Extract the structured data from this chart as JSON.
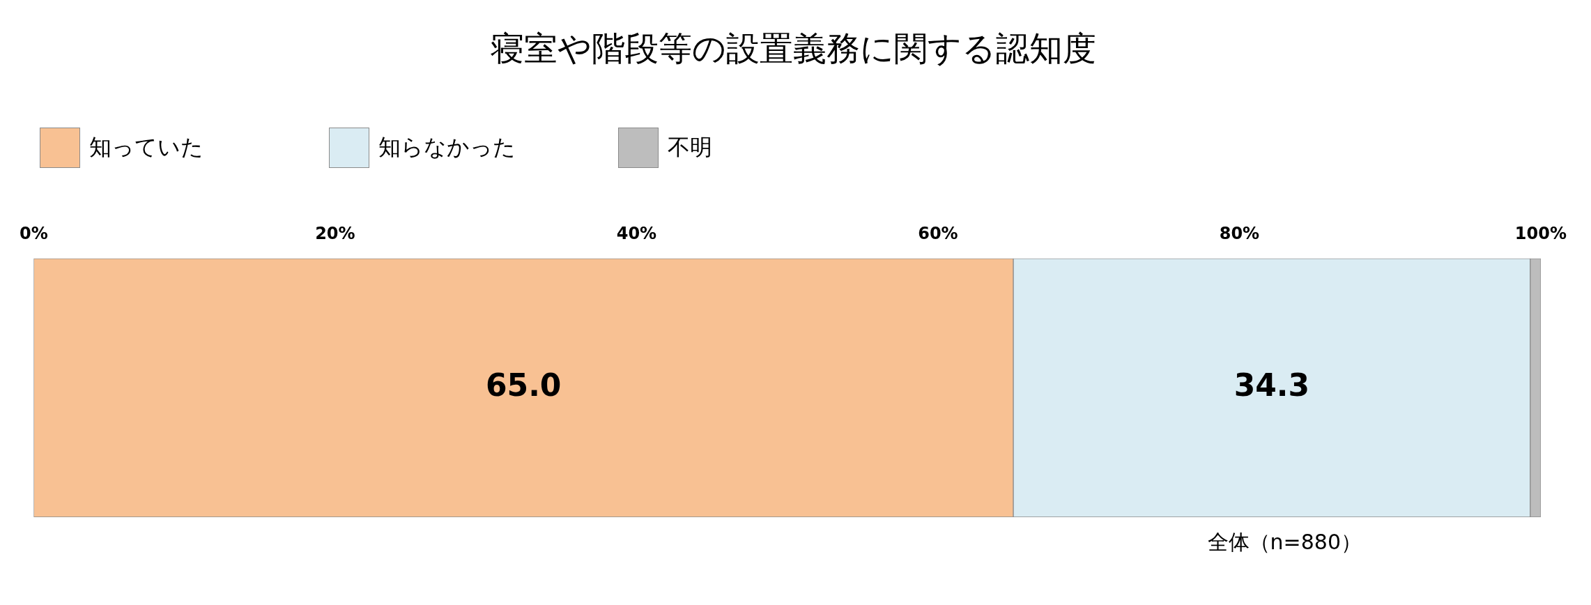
{
  "chart_data": {
    "type": "bar",
    "title": "寝室や階段等の設置義務に関する認知度",
    "orientation": "horizontal",
    "stacked": true,
    "categories": [
      null
    ],
    "series": [
      {
        "name": "知っていた",
        "color": "#f8c193",
        "values": [
          65.0
        ],
        "value_labels": [
          "65.0"
        ]
      },
      {
        "name": "知らなかった",
        "color": "#daecf3",
        "values": [
          34.3
        ],
        "value_labels": [
          "34.3"
        ]
      },
      {
        "name": "不明",
        "color": "#bdbdbd",
        "values": [
          0.7
        ],
        "value_labels": [
          null
        ]
      }
    ],
    "xlim": [
      0,
      100
    ],
    "xticks": [
      {
        "value": 0,
        "label": "0%"
      },
      {
        "value": 20,
        "label": "20%"
      },
      {
        "value": 40,
        "label": "40%"
      },
      {
        "value": 60,
        "label": "60%"
      },
      {
        "value": 80,
        "label": "80%"
      },
      {
        "value": 100,
        "label": "100%"
      }
    ],
    "grid": false,
    "legend": "top left",
    "annotations": [
      "全体（n=880）"
    ]
  }
}
